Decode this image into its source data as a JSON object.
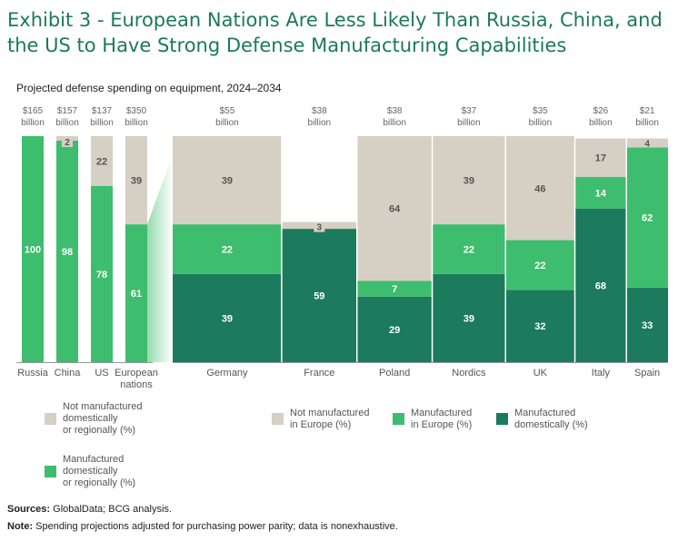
{
  "title": "Exhibit 3 - European Nations Are Less Likely Than Russia, China, and the US to Have Strong Defense Manufacturing Capabilities",
  "subtitle": "Projected defense spending on equipment, 2024–2034",
  "colors": {
    "not_manufactured": "#d6cfc4",
    "manufactured_europe": "#3ebd6e",
    "manufactured_domestic": "#1b7b5c",
    "title": "#1a7a5a"
  },
  "chart_data": [
    {
      "type": "bar",
      "stacked": true,
      "chart": "left",
      "categories": [
        "Russia",
        "China",
        "US",
        "European\nnations"
      ],
      "spending": [
        "$165\nbillion",
        "$157\nbillion",
        "$137\nbillion",
        "$350\nbillion"
      ],
      "series": [
        {
          "name": "Manufactured domestically or regionally (%)",
          "key": "manufactured_europe",
          "values": [
            100,
            98,
            78,
            61
          ]
        },
        {
          "name": "Not manufactured domestically or regionally (%)",
          "key": "not_manufactured",
          "values": [
            0,
            2,
            22,
            39
          ]
        }
      ],
      "ylim": [
        0,
        100
      ]
    },
    {
      "type": "bar",
      "stacked": true,
      "variable_width": true,
      "chart": "right",
      "categories": [
        "Germany",
        "France",
        "Poland",
        "Nordics",
        "UK",
        "Italy",
        "Spain"
      ],
      "spending_billion": [
        55,
        38,
        38,
        37,
        35,
        26,
        21
      ],
      "spending": [
        "$55\nbillion",
        "$38\nbillion",
        "$38\nbillion",
        "$37\nbillion",
        "$35\nbillion",
        "$26\nbillion",
        "$21\nbillion"
      ],
      "series": [
        {
          "name": "Manufactured domestically (%)",
          "key": "manufactured_domestic",
          "values": [
            39,
            59,
            29,
            39,
            32,
            68,
            33
          ]
        },
        {
          "name": "Manufactured in Europe (%)",
          "key": "manufactured_europe",
          "values": [
            22,
            0,
            7,
            22,
            22,
            14,
            62
          ]
        },
        {
          "name": "Not manufactured in Europe (%)",
          "key": "not_manufactured",
          "values": [
            39,
            3,
            64,
            39,
            46,
            17,
            4
          ]
        }
      ],
      "ylim": [
        0,
        100
      ]
    }
  ],
  "legend_left": [
    {
      "label": "Not manufactured\ndomestically\nor regionally (%)",
      "key": "not_manufactured"
    },
    {
      "label": "Manufactured\ndomestically\nor regionally (%)",
      "key": "manufactured_europe"
    }
  ],
  "legend_right": [
    {
      "label": "Not manufactured\nin Europe (%)",
      "key": "not_manufactured"
    },
    {
      "label": "Manufactured\nin Europe (%)",
      "key": "manufactured_europe"
    },
    {
      "label": "Manufactured\ndomestically (%)",
      "key": "manufactured_domestic"
    }
  ],
  "footer": {
    "sources_label": "Sources:",
    "sources_text": " GlobalData; BCG analysis.",
    "note_label": "Note:",
    "note_text": " Spending projections adjusted for purchasing power parity; data is nonexhaustive."
  }
}
